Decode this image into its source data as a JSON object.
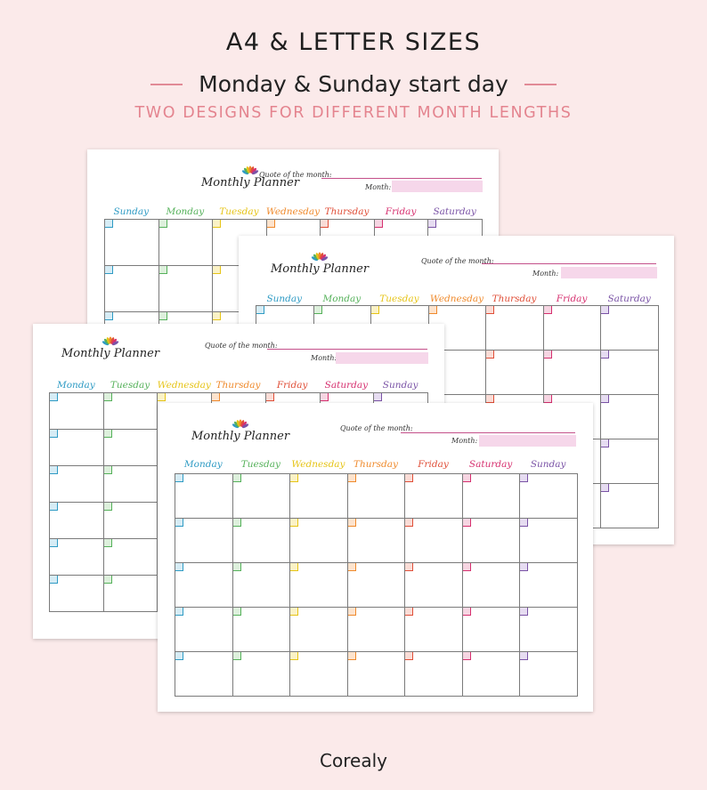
{
  "header": {
    "title": "A4 & LETTER SIZES",
    "subtitle": "Monday & Sunday start day",
    "tagline": "TWO DESIGNS FOR DIFFERENT MONTH LENGTHS"
  },
  "planner": {
    "name": "Monthly Planner",
    "quote_label": "Quote of the month:",
    "month_label": "Month:"
  },
  "sunday_start_days": [
    "Sunday",
    "Monday",
    "Tuesday",
    "Wednesday",
    "Thursday",
    "Friday",
    "Saturday"
  ],
  "monday_start_days": [
    "Monday",
    "Tuesday",
    "Wednesday",
    "Thursday",
    "Friday",
    "Saturday",
    "Sunday"
  ],
  "day_colors": [
    "#2f9bc4",
    "#55b15a",
    "#e6c417",
    "#ef8a2c",
    "#e04f38",
    "#d6306f",
    "#7a53a6"
  ],
  "square_fills": [
    "#d6ecf5",
    "#ddf0dc",
    "#fbf2c6",
    "#fde3cd",
    "#fadcd6",
    "#f6d5e2",
    "#e6dcf1"
  ],
  "brand": "Corealy"
}
